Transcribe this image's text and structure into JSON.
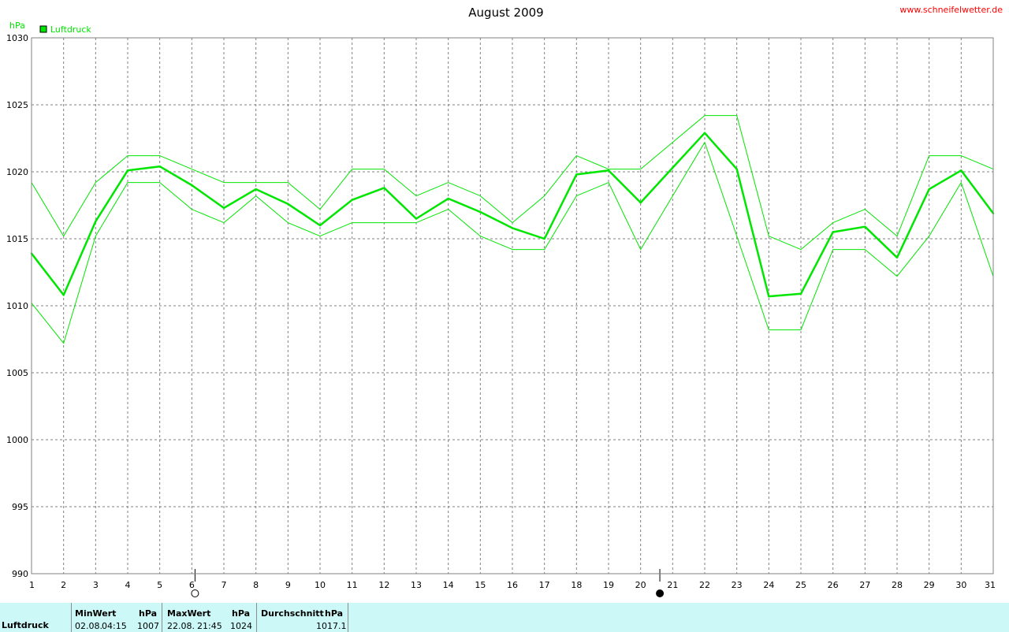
{
  "header": {
    "title": "August 2009",
    "site": "www.schneifelwetter.de"
  },
  "chart_data": {
    "type": "line",
    "title": "August 2009",
    "ylabel": "hPa",
    "xlabel": "",
    "ylim": [
      990,
      1030
    ],
    "yticks": [
      990,
      995,
      1000,
      1005,
      1010,
      1015,
      1020,
      1025,
      1030
    ],
    "x": [
      1,
      2,
      3,
      4,
      5,
      6,
      7,
      8,
      9,
      10,
      11,
      12,
      13,
      14,
      15,
      16,
      17,
      18,
      19,
      20,
      21,
      22,
      23,
      24,
      25,
      26,
      27,
      28,
      29,
      30,
      31
    ],
    "grid": true,
    "legend": "top-left",
    "legend_entries": [
      "Luftdruck"
    ],
    "series": [
      {
        "name": "Luftdruck",
        "role": "mean",
        "color": "#00e600",
        "values": [
          1013.9,
          1010.8,
          1016.3,
          1020.1,
          1020.4,
          1019.0,
          1017.3,
          1018.7,
          1017.6,
          1016.0,
          1017.9,
          1018.8,
          1016.5,
          1018.0,
          1017.0,
          1015.8,
          1015.0,
          1019.8,
          1020.1,
          1017.7,
          1020.3,
          1022.9,
          1020.2,
          1010.7,
          1010.9,
          1015.5,
          1015.9,
          1013.6,
          1018.7,
          1020.1,
          1016.9
        ]
      },
      {
        "role": "max",
        "color": "#00e600",
        "values": [
          1019.2,
          1015.2,
          1019.2,
          1021.2,
          1021.2,
          1020.2,
          1019.2,
          1019.2,
          1019.2,
          1017.2,
          1020.2,
          1020.2,
          1018.2,
          1019.2,
          1018.2,
          1016.2,
          1018.2,
          1021.2,
          1020.2,
          1020.2,
          1022.2,
          1024.2,
          1024.2,
          1015.2,
          1014.2,
          1016.2,
          1017.2,
          1015.2,
          1021.2,
          1021.2,
          1020.2
        ]
      },
      {
        "role": "min",
        "color": "#00e600",
        "values": [
          1010.2,
          1007.2,
          1015.2,
          1019.2,
          1019.2,
          1017.2,
          1016.2,
          1018.2,
          1016.2,
          1015.2,
          1016.2,
          1016.2,
          1016.2,
          1017.2,
          1015.2,
          1014.2,
          1014.2,
          1018.2,
          1019.2,
          1014.2,
          1018.2,
          1022.2,
          1015.2,
          1008.2,
          1008.2,
          1014.2,
          1014.2,
          1012.2,
          1015.2,
          1019.2,
          1012.2
        ]
      }
    ],
    "moon_phases": [
      {
        "day": 6.1,
        "phase": "full"
      },
      {
        "day": 20.6,
        "phase": "new"
      }
    ]
  },
  "stats": {
    "row_label": "Luftdruck",
    "min": {
      "label": "MinWert",
      "unit": "hPa",
      "date": "02.08.",
      "time": "04:15",
      "value": "1007"
    },
    "max": {
      "label": "MaxWert",
      "unit": "hPa",
      "date": "22.08.",
      "time": "21:45",
      "value": "1024"
    },
    "avg": {
      "label": "Durchschnitt",
      "unit": "hPa",
      "value": "1017.1"
    }
  },
  "colors": {
    "series": "#00e600",
    "grid": "#808080",
    "site": "#ff0000",
    "stats_bg": "#ccf8f8"
  }
}
